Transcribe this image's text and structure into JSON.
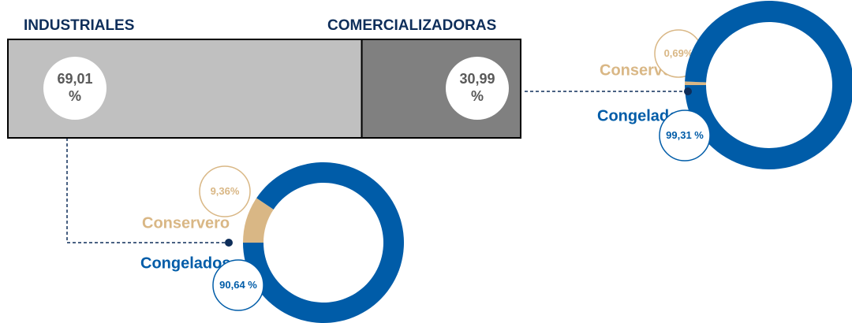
{
  "chart_data": [
    {
      "type": "stackedbar",
      "series": [
        {
          "name": "INDUSTRIALES",
          "color": "#c0c0c0",
          "values": [
            69.01
          ],
          "value_labels": [
            "69,01 %"
          ]
        },
        {
          "name": "COMERCIALIZADORAS",
          "color": "#808080",
          "values": [
            30.99
          ],
          "value_labels": [
            "30,99 %"
          ]
        }
      ]
    },
    {
      "type": "donut",
      "categories": [
        "Conservero",
        "Congelados"
      ],
      "values": [
        9.36,
        90.64
      ],
      "value_labels": [
        "9,36%",
        "90,64 %"
      ],
      "colors": [
        "#d9b785",
        "#005ca8"
      ]
    },
    {
      "type": "donut",
      "categories": [
        "Conservero",
        "Congelados"
      ],
      "values": [
        0.69,
        99.31
      ],
      "value_labels": [
        "0,69%",
        "99,31 %"
      ],
      "colors": [
        "#d9b785",
        "#005ca8"
      ]
    }
  ]
}
